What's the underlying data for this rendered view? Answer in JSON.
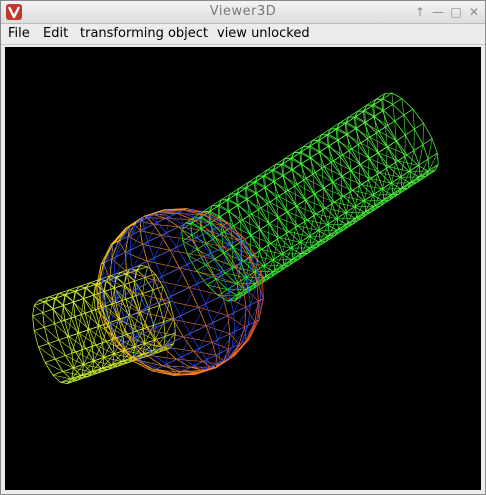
{
  "window": {
    "title": "Viewer3D",
    "icon": "v-logo-icon",
    "controls": {
      "pin": "↑",
      "minimize": "—",
      "maximize": "□",
      "close": "✕"
    }
  },
  "menubar": {
    "items": [
      {
        "label": "File"
      },
      {
        "label": "Edit"
      },
      {
        "label": "transforming object"
      },
      {
        "label": "view unlocked"
      }
    ]
  },
  "viewport": {
    "background": "#000000",
    "model": "wireframe-mesh",
    "colors": {
      "cylinder_right": "#33ff33",
      "cylinder_left": "#ccff33",
      "sphere": "#ff8a1a",
      "inner": "#2244ff"
    }
  }
}
